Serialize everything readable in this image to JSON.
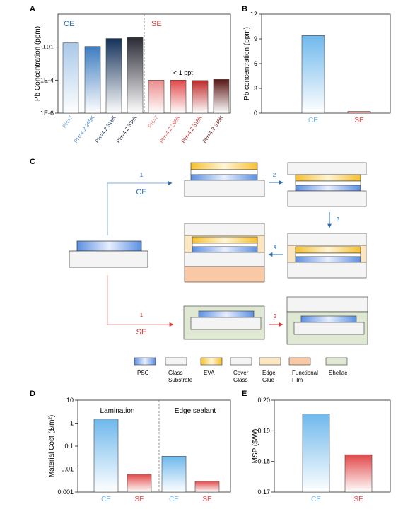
{
  "panels": {
    "a": {
      "letter": "A"
    },
    "b": {
      "letter": "B"
    },
    "c": {
      "letter": "C"
    },
    "d": {
      "letter": "D"
    },
    "e": {
      "letter": "E"
    }
  },
  "chart_data": [
    {
      "panel": "A",
      "type": "bar",
      "scale": "log",
      "ylabel": "Pb Concentration (ppm)",
      "ylim": [
        1e-06,
        1
      ],
      "yticks": [
        "1E-6",
        "1E-4",
        "0.01"
      ],
      "group_labels": [
        "CE",
        "SE"
      ],
      "annotation": "< 1 ppt",
      "categories": [
        "PH=7",
        "PH=4.2  298K",
        "PH=4.2  318K",
        "PH=4.2  338K",
        "PH=7",
        "PH=4.2  298K",
        "PH=4.2  318K",
        "PH=4.2  338K"
      ],
      "values": [
        0.018,
        0.011,
        0.033,
        0.038,
        0.0001,
        0.0001,
        9.5e-05,
        0.00011
      ],
      "colors": [
        "#a9c8e8",
        "#3d7cc0",
        "#14325a",
        "#2a2a36",
        "#ea8c8c",
        "#e24848",
        "#c02828",
        "#5a1515"
      ],
      "tick_label_colors": [
        "#6fa8dc",
        "#4a86c7",
        "#1b3a63",
        "#1b2233",
        "#e97a7a",
        "#e25555",
        "#b52525",
        "#6b1a1a"
      ]
    },
    {
      "panel": "B",
      "type": "bar",
      "ylabel": "Pb concentration (ppm)",
      "ylim": [
        0,
        12
      ],
      "yticks": [
        "0",
        "3",
        "6",
        "9",
        "12"
      ],
      "categories": [
        "CE",
        "SE"
      ],
      "values": [
        9.4,
        0.2
      ],
      "colors": [
        "#6fb8ec",
        "#e24848"
      ]
    },
    {
      "panel": "D",
      "type": "bar",
      "scale": "log",
      "ylabel": "Material Cost ($/m²)",
      "ylim": [
        0.001,
        10
      ],
      "yticks": [
        "0.001",
        "0.01",
        "0.1",
        "1",
        "10"
      ],
      "group_labels": [
        "Lamination",
        "Edge sealant"
      ],
      "categories": [
        "CE",
        "SE",
        "CE",
        "SE"
      ],
      "values": [
        1.5,
        0.006,
        0.036,
        0.003
      ],
      "colors": [
        "#6fb8ec",
        "#e24848",
        "#6fb8ec",
        "#e24848"
      ]
    },
    {
      "panel": "E",
      "type": "bar",
      "ylabel": "MSP ($/W)",
      "ylim": [
        0.17,
        0.2
      ],
      "yticks": [
        "0.17",
        "0.18",
        "0.19",
        "0.20"
      ],
      "categories": [
        "CE",
        "SE"
      ],
      "values": [
        0.1955,
        0.1822
      ],
      "colors": [
        "#6fb8ec",
        "#e24848"
      ]
    }
  ],
  "diagram": {
    "ce_label": "CE",
    "se_label": "SE",
    "steps": {
      "ce1": "1",
      "ce2": "2",
      "ce3": "3",
      "ce4": "4",
      "se1": "1",
      "se2": "2"
    },
    "legend": [
      {
        "label": "PSC",
        "label2": "",
        "style": "psc"
      },
      {
        "label": "Glass",
        "label2": "Substrate",
        "style": "glass"
      },
      {
        "label": "EVA",
        "label2": "",
        "style": "eva"
      },
      {
        "label": "Cover",
        "label2": "Glass",
        "style": "glass"
      },
      {
        "label": "Edge",
        "label2": "Glue",
        "style": "glue"
      },
      {
        "label": "Functional",
        "label2": "Film",
        "style": "film"
      },
      {
        "label": "Shellac",
        "label2": "",
        "style": "shellac"
      }
    ],
    "colors": {
      "ce": "#2a6fb0",
      "se": "#d23a3a",
      "psc": "#5b8fe0",
      "eva": "#f5c842",
      "glue": "#fbe6c0",
      "film": "#f8c9a4",
      "shellac": "#dfe8d2",
      "glass": "#f4f4f4"
    }
  }
}
